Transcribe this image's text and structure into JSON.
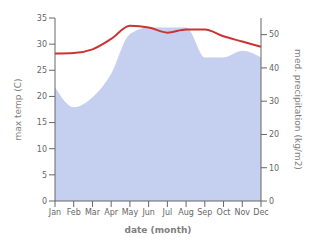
{
  "chart_data": {
    "type": "line",
    "xlabel": "date (month)",
    "ylabel": "max temp (C)",
    "y2label": "med. precipitation (kg/m2)",
    "categories": [
      "Jan",
      "Feb",
      "Mar",
      "Apr",
      "May",
      "Jun",
      "Jul",
      "Aug",
      "Sep",
      "Oct",
      "Nov",
      "Dec"
    ],
    "series": [
      {
        "type": "area",
        "axis": "y2",
        "color": "#c5d0f0",
        "values": [
          34,
          28,
          31,
          38,
          50,
          52,
          52,
          52,
          43,
          43,
          45,
          43
        ]
      },
      {
        "type": "line",
        "color": "#cc3333",
        "values": [
          28.2,
          28.3,
          29.0,
          31.0,
          33.5,
          33.2,
          32.2,
          32.8,
          32.8,
          31.5,
          30.5,
          29.5
        ]
      }
    ],
    "ylim": [
      0,
      35
    ],
    "yticks": [
      0,
      5,
      10,
      15,
      20,
      25,
      30,
      35
    ],
    "y2lim": [
      0,
      55
    ],
    "y2ticks": [
      0,
      10,
      20,
      30,
      40,
      50
    ],
    "grid": false
  }
}
